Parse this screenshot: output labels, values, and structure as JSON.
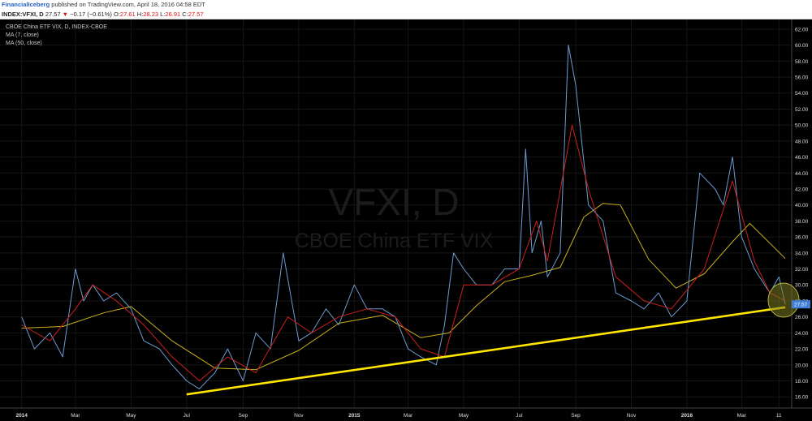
{
  "header": {
    "author": "FinancialIceberg",
    "published": "published on TradingView.com, April 18, 2016 04:58 EDT"
  },
  "quote": {
    "symbol": "INDEX:VFXI, D",
    "last": "27.57",
    "change": "−0.17 (−0.61%)",
    "o_label": "O:",
    "o_value": "27.61",
    "h_label": "H:",
    "h_value": "28.23",
    "l_label": "L:",
    "l_value": "26.91",
    "c_label": "C:",
    "c_value": "27.57"
  },
  "legend": {
    "line1": "CBOE China ETF VIX, D, INDEX-CBOE",
    "line2": "MA (7, close)",
    "line3": "MA (50, close)"
  },
  "watermark": {
    "line1": "VFXI, D",
    "line2": "CBOE China ETF VIX"
  },
  "colors": {
    "price": "#6c9bd2",
    "ma7": "#cc1f1f",
    "ma50": "#c9b21a",
    "trendline": "#ffe600",
    "circle": "#9a9a2e",
    "last_price_label": "#3f7fd6"
  },
  "chart_data": {
    "type": "line",
    "title": "CBOE China ETF VIX, D, INDEX-CBOE",
    "ylim": [
      15,
      62
    ],
    "ytick_labels": [
      "16.00",
      "18.00",
      "20.00",
      "22.00",
      "24.00",
      "26.00",
      "28.00",
      "30.00",
      "32.00",
      "34.00",
      "36.00",
      "38.00",
      "40.00",
      "42.00",
      "44.00",
      "46.00",
      "48.00",
      "50.00",
      "52.00",
      "54.00",
      "56.00",
      "58.00",
      "60.00",
      "62.00"
    ],
    "xtick_labels": [
      "2014",
      "Mar",
      "May",
      "Jul",
      "Sep",
      "Nov",
      "2015",
      "Mar",
      "May",
      "Jul",
      "Sep",
      "Nov",
      "2016",
      "Mar",
      "11"
    ],
    "xtick_bold": [
      "2014",
      "2015",
      "2016"
    ],
    "last_price": "27.57",
    "series": [
      {
        "name": "CBOE China ETF VIX",
        "x": [
          "2014-01-01",
          "2014-01-15",
          "2014-02-01",
          "2014-02-15",
          "2014-03-01",
          "2014-03-10",
          "2014-03-20",
          "2014-04-01",
          "2014-04-15",
          "2014-05-01",
          "2014-05-15",
          "2014-06-01",
          "2014-06-15",
          "2014-07-01",
          "2014-07-15",
          "2014-08-01",
          "2014-08-15",
          "2014-09-01",
          "2014-09-15",
          "2014-10-01",
          "2014-10-15",
          "2014-11-01",
          "2014-11-15",
          "2014-12-01",
          "2014-12-15",
          "2015-01-01",
          "2015-01-15",
          "2015-02-01",
          "2015-02-15",
          "2015-03-01",
          "2015-03-15",
          "2015-04-01",
          "2015-04-10",
          "2015-04-20",
          "2015-05-01",
          "2015-05-15",
          "2015-06-01",
          "2015-06-15",
          "2015-07-01",
          "2015-07-08",
          "2015-07-15",
          "2015-07-25",
          "2015-08-01",
          "2015-08-15",
          "2015-08-24",
          "2015-09-01",
          "2015-09-15",
          "2015-10-01",
          "2015-10-15",
          "2015-11-01",
          "2015-11-15",
          "2015-12-01",
          "2015-12-15",
          "2016-01-01",
          "2016-01-15",
          "2016-02-01",
          "2016-02-10",
          "2016-02-20",
          "2016-03-01",
          "2016-03-15",
          "2016-04-01",
          "2016-04-11",
          "2016-04-18"
        ],
        "values": [
          26,
          22,
          24,
          21,
          32,
          28,
          30,
          28,
          29,
          27,
          23,
          22,
          20,
          18,
          17,
          19,
          22,
          18,
          24,
          22,
          34,
          23,
          24,
          27,
          25,
          30,
          27,
          27,
          26,
          22,
          21,
          20,
          25,
          34,
          32,
          30,
          30,
          32,
          32,
          47,
          34,
          38,
          31,
          34,
          60,
          55,
          40,
          38,
          29,
          28,
          27,
          29,
          26,
          28,
          44,
          42,
          40,
          46,
          36,
          32,
          29,
          31,
          27.57
        ]
      },
      {
        "name": "MA (7, close)",
        "x": [
          "2014-01-01",
          "2014-02-01",
          "2014-03-01",
          "2014-03-20",
          "2014-04-15",
          "2014-05-15",
          "2014-06-15",
          "2014-07-15",
          "2014-08-15",
          "2014-09-15",
          "2014-10-20",
          "2014-11-15",
          "2014-12-15",
          "2015-01-15",
          "2015-02-15",
          "2015-03-15",
          "2015-04-10",
          "2015-05-01",
          "2015-06-01",
          "2015-07-01",
          "2015-07-20",
          "2015-08-01",
          "2015-08-28",
          "2015-09-15",
          "2015-10-15",
          "2015-11-15",
          "2015-12-15",
          "2016-01-20",
          "2016-02-20",
          "2016-03-15",
          "2016-04-01",
          "2016-04-18"
        ],
        "values": [
          25,
          23,
          27,
          30,
          28,
          25,
          21,
          18,
          21,
          19,
          26,
          24,
          26,
          27,
          26,
          22,
          21,
          30,
          30,
          32,
          38,
          33,
          50,
          42,
          31,
          28,
          27,
          32,
          43,
          33,
          29,
          28
        ]
      },
      {
        "name": "MA (50, close)",
        "x": [
          "2014-01-01",
          "2014-02-15",
          "2014-04-01",
          "2014-05-01",
          "2014-06-15",
          "2014-08-01",
          "2014-09-15",
          "2014-11-01",
          "2014-12-15",
          "2015-02-01",
          "2015-03-15",
          "2015-04-15",
          "2015-05-15",
          "2015-06-15",
          "2015-07-15",
          "2015-08-15",
          "2015-09-10",
          "2015-10-01",
          "2015-10-20",
          "2015-11-20",
          "2015-12-20",
          "2016-01-20",
          "2016-02-20",
          "2016-03-10",
          "2016-04-18"
        ],
        "values": [
          24.6,
          24.8,
          26.5,
          27.3,
          23,
          19.6,
          19.4,
          21.8,
          25.2,
          26.2,
          23.4,
          24,
          27.4,
          30.4,
          31.2,
          32.2,
          38.5,
          40.2,
          40,
          33.2,
          29.6,
          31.4,
          35.4,
          37.7,
          33.3
        ]
      },
      {
        "name": "trendline",
        "x": [
          "2014-07-01",
          "2016-04-18"
        ],
        "values": [
          16.3,
          27.2
        ]
      }
    ]
  }
}
